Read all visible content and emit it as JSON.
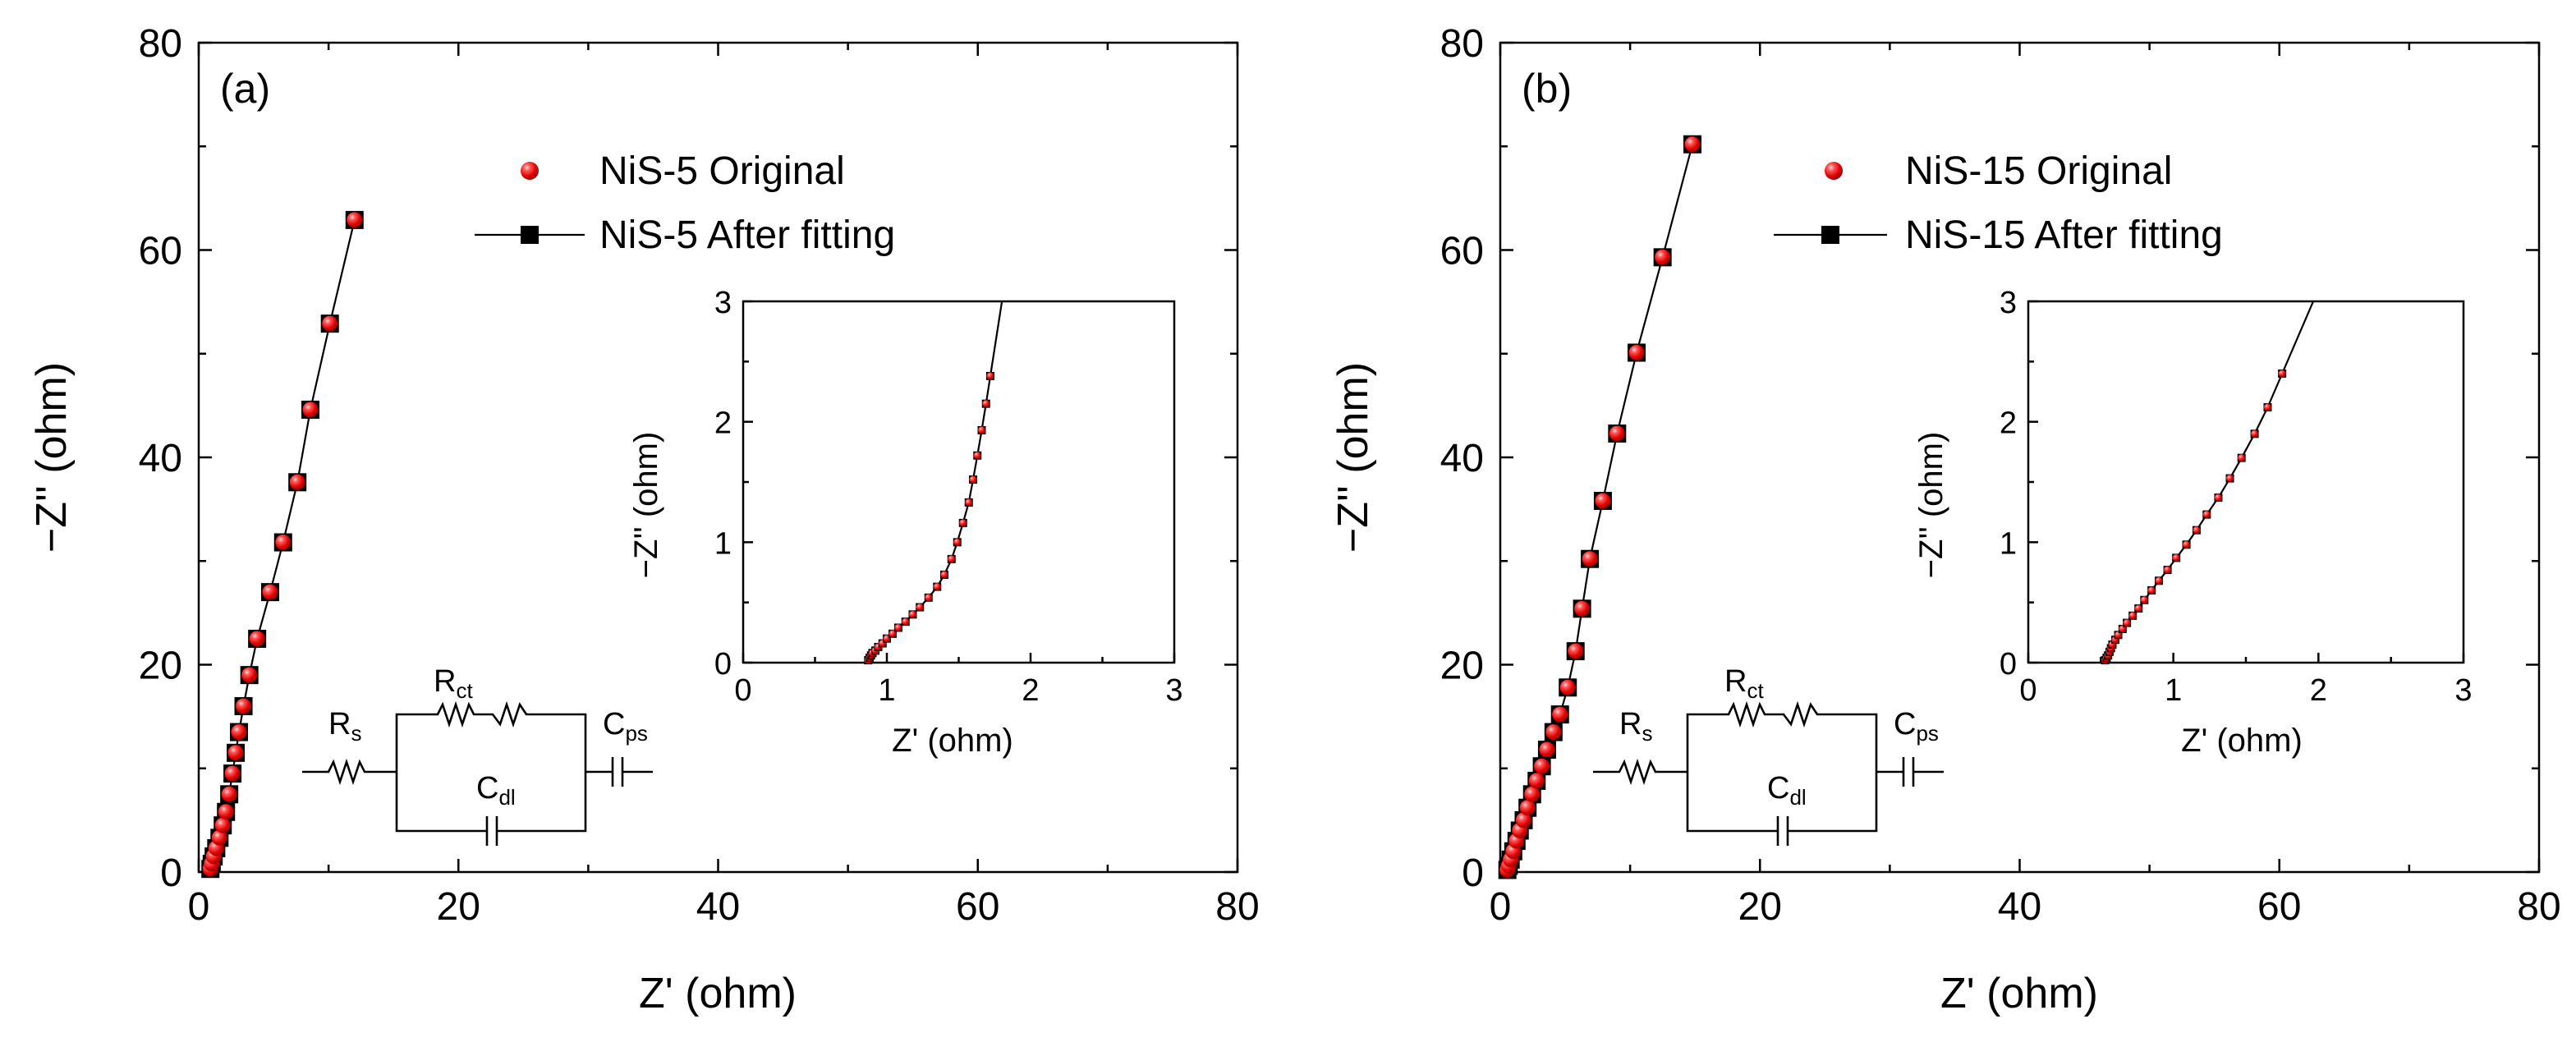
{
  "chart_data": [
    {
      "type": "scatter",
      "panel_label": "(a)",
      "xlabel": "Z' (ohm)",
      "ylabel": "−Z'' (ohm)",
      "xlim": [
        0,
        80
      ],
      "ylim": [
        0,
        80
      ],
      "x_ticks": [
        "0",
        "20",
        "40",
        "60",
        "80"
      ],
      "y_ticks": [
        "0",
        "20",
        "40",
        "60",
        "80"
      ],
      "legend": [
        "NiS-5 Original",
        "NiS-5 After fitting"
      ],
      "legend_position": "top-center",
      "series": [
        {
          "name": "NiS-5 Original",
          "x": [
            0.9,
            1.0,
            1.15,
            1.35,
            1.6,
            1.85,
            2.1,
            2.35,
            2.6,
            2.85,
            3.1,
            3.45,
            3.9,
            4.5,
            5.5,
            6.5,
            7.6,
            8.6,
            10.1,
            12.0
          ],
          "y": [
            0.3,
            0.8,
            1.5,
            2.3,
            3.3,
            4.5,
            5.8,
            7.5,
            9.5,
            11.5,
            13.5,
            16.0,
            19.0,
            22.5,
            27.0,
            31.8,
            37.6,
            44.6,
            52.9,
            62.9
          ]
        },
        {
          "name": "NiS-5 After fitting",
          "x": [
            0.9,
            1.0,
            1.15,
            1.35,
            1.6,
            1.85,
            2.1,
            2.35,
            2.6,
            2.85,
            3.1,
            3.45,
            3.9,
            4.5,
            5.5,
            6.5,
            7.6,
            8.6,
            10.1,
            12.0
          ],
          "y": [
            0.3,
            0.8,
            1.5,
            2.3,
            3.3,
            4.5,
            5.8,
            7.5,
            9.5,
            11.5,
            13.5,
            16.0,
            19.0,
            22.5,
            27.0,
            31.8,
            37.6,
            44.6,
            52.9,
            62.9
          ]
        }
      ],
      "inset": {
        "xlabel": "Z' (ohm)",
        "ylabel": "−Z'' (ohm)",
        "xlim": [
          0,
          3
        ],
        "ylim": [
          0,
          3
        ],
        "x_ticks": [
          "0",
          "1",
          "2",
          "3"
        ],
        "y_ticks": [
          "0",
          "1",
          "2",
          "3"
        ],
        "x": [
          0.87,
          0.88,
          0.89,
          0.9,
          0.92,
          0.94,
          0.97,
          1.0,
          1.04,
          1.08,
          1.13,
          1.18,
          1.23,
          1.29,
          1.35,
          1.4,
          1.45,
          1.49,
          1.53,
          1.57,
          1.6,
          1.63,
          1.66,
          1.69,
          1.72
        ],
        "y": [
          0.02,
          0.04,
          0.06,
          0.08,
          0.1,
          0.13,
          0.16,
          0.2,
          0.24,
          0.29,
          0.34,
          0.4,
          0.46,
          0.54,
          0.63,
          0.73,
          0.86,
          1.0,
          1.16,
          1.33,
          1.52,
          1.72,
          1.93,
          2.15,
          2.38
        ]
      },
      "circuit_labels": {
        "rs": "R",
        "rs_sub": "s",
        "rct": "R",
        "rct_sub": "ct",
        "cdl": "C",
        "cdl_sub": "dl",
        "cps": "C",
        "cps_sub": "ps"
      }
    },
    {
      "type": "scatter",
      "panel_label": "(b)",
      "xlabel": "Z' (ohm)",
      "ylabel": "−Z'' (ohm)",
      "xlim": [
        0,
        80
      ],
      "ylim": [
        0,
        80
      ],
      "x_ticks": [
        "0",
        "20",
        "40",
        "60",
        "80"
      ],
      "y_ticks": [
        "0",
        "20",
        "40",
        "60",
        "80"
      ],
      "legend": [
        "NiS-15 Original",
        "NiS-15 After fitting"
      ],
      "legend_position": "top-center",
      "series": [
        {
          "name": "NiS-15 Original",
          "x": [
            0.55,
            0.65,
            0.8,
            1.0,
            1.25,
            1.5,
            1.8,
            2.1,
            2.45,
            2.8,
            3.2,
            3.6,
            4.1,
            4.6,
            5.2,
            5.8,
            6.3,
            6.9,
            7.9,
            9.0,
            10.5,
            12.5,
            14.8
          ],
          "y": [
            0.2,
            0.6,
            1.2,
            2.0,
            3.0,
            4.0,
            5.0,
            6.2,
            7.5,
            8.8,
            10.2,
            11.8,
            13.5,
            15.2,
            17.8,
            21.3,
            25.4,
            30.2,
            35.8,
            42.3,
            50.1,
            59.3,
            70.2
          ]
        },
        {
          "name": "NiS-15 After fitting",
          "x": [
            0.55,
            0.65,
            0.8,
            1.0,
            1.25,
            1.5,
            1.8,
            2.1,
            2.45,
            2.8,
            3.2,
            3.6,
            4.1,
            4.6,
            5.2,
            5.8,
            6.3,
            6.9,
            7.9,
            9.0,
            10.5,
            12.5,
            14.8
          ],
          "y": [
            0.2,
            0.6,
            1.2,
            2.0,
            3.0,
            4.0,
            5.0,
            6.2,
            7.5,
            8.8,
            10.2,
            11.8,
            13.5,
            15.2,
            17.8,
            21.3,
            25.4,
            30.2,
            35.8,
            42.3,
            50.1,
            59.3,
            70.2
          ]
        }
      ],
      "inset": {
        "xlabel": "Z' (ohm)",
        "ylabel": "−Z'' (ohm)",
        "xlim": [
          0,
          3
        ],
        "ylim": [
          0,
          3
        ],
        "x_ticks": [
          "0",
          "1",
          "2",
          "3"
        ],
        "y_ticks": [
          "0",
          "1",
          "2",
          "3"
        ],
        "x": [
          0.53,
          0.54,
          0.55,
          0.56,
          0.57,
          0.58,
          0.6,
          0.62,
          0.65,
          0.68,
          0.72,
          0.76,
          0.8,
          0.85,
          0.9,
          0.96,
          1.02,
          1.09,
          1.16,
          1.23,
          1.31,
          1.39,
          1.47,
          1.56,
          1.65,
          1.75
        ],
        "y": [
          0.02,
          0.04,
          0.06,
          0.09,
          0.12,
          0.15,
          0.19,
          0.23,
          0.28,
          0.33,
          0.39,
          0.45,
          0.52,
          0.6,
          0.68,
          0.77,
          0.87,
          0.98,
          1.1,
          1.23,
          1.37,
          1.53,
          1.7,
          1.9,
          2.12,
          2.4
        ]
      },
      "circuit_labels": {
        "rs": "R",
        "rs_sub": "s",
        "rct": "R",
        "rct_sub": "ct",
        "cdl": "C",
        "cdl_sub": "dl",
        "cps": "C",
        "cps_sub": "ps"
      }
    }
  ]
}
